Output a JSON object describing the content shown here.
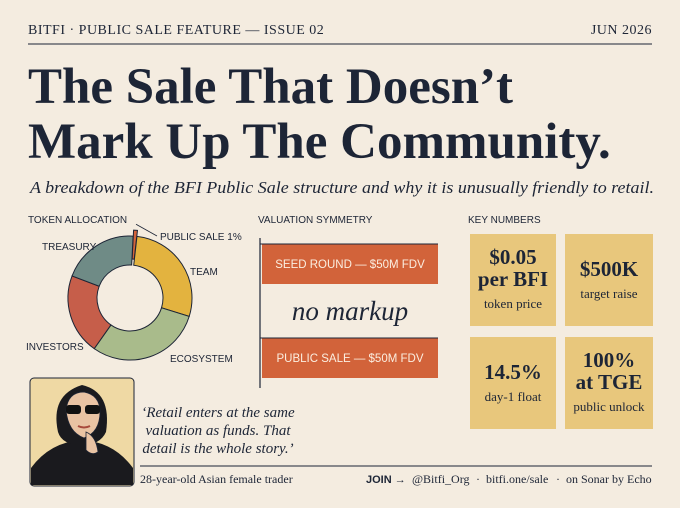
{
  "header": {
    "left": "BITFI · PUBLIC SALE FEATURE  —  ISSUE 02",
    "right": "JUN 2026"
  },
  "title": {
    "line1": "The Sale That Doesn’t",
    "line2": "Mark Up The Community."
  },
  "subtitle": "A breakdown of the BFI Public Sale structure and why it is unusually friendly to retail.",
  "token_allocation": {
    "heading": "TOKEN ALLOCATION"
  },
  "chart_data": {
    "type": "donut",
    "categories": [
      "PUBLIC SALE 1%",
      "TEAM",
      "ECOSYSTEM",
      "INVESTORS",
      "TREASURY"
    ],
    "values": [
      1,
      28,
      30,
      21,
      20
    ],
    "colors": [
      "#d2633a",
      "#e3b33f",
      "#a9bb8b",
      "#c65e4a",
      "#6f8b86"
    ]
  },
  "valuation": {
    "heading": "VALUATION SYMMETRY",
    "seed": "SEED ROUND — $50M FDV",
    "middle": "no markup",
    "public": "PUBLIC SALE — $50M FDV"
  },
  "key_numbers": {
    "heading": "KEY NUMBERS",
    "cards": [
      {
        "lines": [
          "$0.05",
          "per BFI"
        ],
        "caption": "token price"
      },
      {
        "lines": [
          "$500K"
        ],
        "caption": "target raise"
      },
      {
        "lines": [
          "14.5%"
        ],
        "caption": "day-1 float"
      },
      {
        "lines": [
          "100%",
          "at TGE"
        ],
        "caption": "public unlock"
      }
    ]
  },
  "quote": {
    "lines": [
      "‘Retail enters at the same",
      "valuation as funds. That",
      "detail is the whole story.’"
    ]
  },
  "caption": "28-year-old Asian female trader",
  "footer": {
    "join": "JOIN →",
    "items": [
      "@Bitfi_Org",
      "·",
      "bitfi.one/sale",
      "·",
      "on Sonar by Echo"
    ]
  }
}
